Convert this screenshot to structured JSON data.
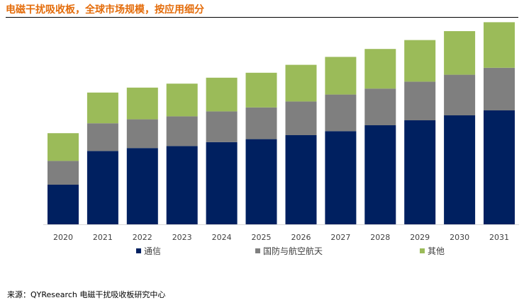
{
  "title": "电磁干扰吸收板，全球市场规模，按应用细分",
  "source": "来源：QYResearch 电磁干扰吸收板研究中心",
  "chart_data": {
    "type": "bar",
    "stacked": true,
    "title": "电磁干扰吸收板，全球市场规模，按应用细分",
    "xlabel": "",
    "ylabel": "",
    "ylim": [
      0,
      100
    ],
    "grid": false,
    "legend_position": "bottom",
    "categories": [
      "2020",
      "2021",
      "2022",
      "2023",
      "2024",
      "2025",
      "2026",
      "2027",
      "2028",
      "2029",
      "2030",
      "2031"
    ],
    "series": [
      {
        "name": "通信",
        "color": "#002060",
        "values": [
          20,
          37,
          38.5,
          39.5,
          41.5,
          43,
          45,
          47,
          50,
          52.5,
          55,
          57.5
        ]
      },
      {
        "name": "国防与航空航天",
        "color": "#7F7F7F",
        "values": [
          12,
          14,
          14.5,
          15,
          15.5,
          16,
          17,
          18.5,
          18.5,
          19.5,
          20.5,
          21.5
        ]
      },
      {
        "name": "其他",
        "color": "#9BBB59",
        "values": [
          14,
          15.5,
          16,
          16.5,
          17,
          17.5,
          18.5,
          19,
          20,
          21,
          22,
          23
        ]
      }
    ]
  }
}
